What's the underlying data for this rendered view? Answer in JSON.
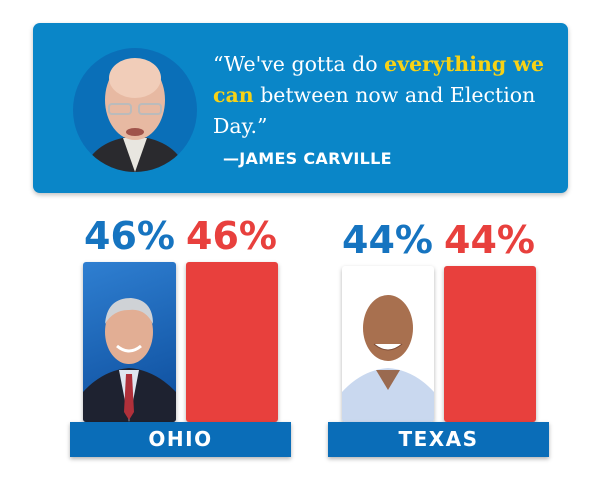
{
  "quote": {
    "text_before": "“We've gotta do ",
    "highlight": "everything we can",
    "text_after": " between now and Election Day.”",
    "attribution": "—JAMES CARVILLE",
    "highlight_color": "#f7d215",
    "card_color": "#0a86c8"
  },
  "races": [
    {
      "state": "OHIO",
      "dem_pct": "46%",
      "rep_pct": "46%",
      "dem_value": 46,
      "rep_value": 46
    },
    {
      "state": "TEXAS",
      "dem_pct": "44%",
      "rep_pct": "44%",
      "dem_value": 44,
      "rep_value": 44
    }
  ],
  "colors": {
    "dem": "#1674c0",
    "rep": "#e8403d"
  }
}
